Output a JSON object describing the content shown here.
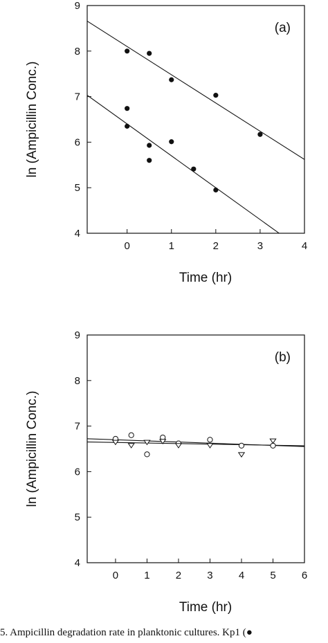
{
  "caption": "5. Ampicillin degradation rate in planktonic cultures. Kp1 (●",
  "chart_data": [
    {
      "type": "scatter",
      "panel_label": "(a)",
      "xlabel": "Time (hr)",
      "ylabel": "ln (Ampicillin Conc.)",
      "xlim": [
        -0.9,
        4
      ],
      "ylim": [
        4,
        9
      ],
      "x_ticks": [
        0,
        1,
        2,
        3,
        4
      ],
      "y_ticks": [
        4,
        5,
        6,
        7,
        8,
        9
      ],
      "grid": false,
      "series": [
        {
          "marker": "filled-circle",
          "x": [
            0,
            0.5,
            1,
            2,
            3
          ],
          "y": [
            8.0,
            7.95,
            7.37,
            7.03,
            6.17
          ],
          "fit": {
            "slope": -0.62,
            "intercept": 8.1
          }
        },
        {
          "marker": "filled-circle",
          "x": [
            0,
            0,
            0.5,
            0.5,
            1,
            1.5,
            2
          ],
          "y": [
            6.74,
            6.35,
            5.93,
            5.6,
            6.01,
            5.41,
            4.95
          ],
          "fit": {
            "slope": -0.7,
            "intercept": 6.4
          }
        }
      ]
    },
    {
      "type": "scatter",
      "panel_label": "(b)",
      "xlabel": "Time (hr)",
      "ylabel": "ln (Ampicillin Conc.)",
      "xlim": [
        -0.9,
        6
      ],
      "ylim": [
        4,
        9
      ],
      "x_ticks": [
        0,
        1,
        2,
        3,
        4,
        5,
        6
      ],
      "y_ticks": [
        4,
        5,
        6,
        7,
        8,
        9
      ],
      "grid": false,
      "series": [
        {
          "marker": "open-circle",
          "x": [
            0,
            0.5,
            1,
            1.5,
            2,
            3,
            4,
            5
          ],
          "y": [
            6.72,
            6.8,
            6.38,
            6.75,
            6.62,
            6.7,
            6.57,
            6.57
          ],
          "fit": {
            "slope": -0.025,
            "intercept": 6.7
          }
        },
        {
          "marker": "open-triangle-down",
          "x": [
            0,
            0.5,
            1,
            1.5,
            2,
            3,
            4,
            5
          ],
          "y": [
            6.65,
            6.58,
            6.65,
            6.67,
            6.58,
            6.58,
            6.38,
            6.68
          ],
          "fit": {
            "slope": -0.012,
            "intercept": 6.64
          }
        }
      ]
    }
  ]
}
